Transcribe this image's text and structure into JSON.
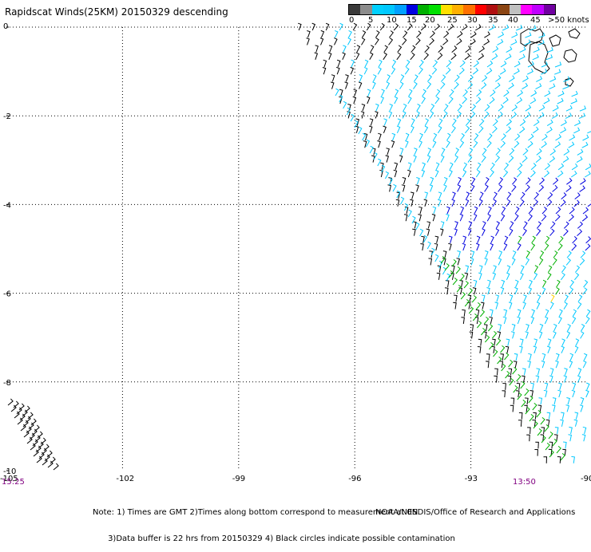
{
  "title": "Rapidscat Winds(25KM) 20150329 descending",
  "colorbar": {
    "colors": [
      "#3a3a3a",
      "#8c8c8c",
      "#00d0ff",
      "#00c8ff",
      "#00a0ff",
      "#0000e0",
      "#00b000",
      "#00e000",
      "#ffe000",
      "#ffb000",
      "#ff7000",
      "#ff0000",
      "#b01010",
      "#8b4513",
      "#c0c0c0",
      "#ff00ff",
      "#c000ff",
      "#7000a0"
    ],
    "labels": [
      "0",
      "5",
      "10",
      "15",
      "20",
      "25",
      "30",
      "35",
      "40",
      "45",
      ">50 knots"
    ]
  },
  "axes": {
    "x_ticks": [
      "-105",
      "-102",
      "-99",
      "-96",
      "-93",
      "-90"
    ],
    "y_ticks": [
      "0",
      "-2",
      "-4",
      "-6",
      "-8",
      "-10"
    ]
  },
  "times": {
    "left": "15:25",
    "right": "13:50"
  },
  "note_lines": [
    "Note: 1) Times are GMT 2)Times along bottom correspond to measurement at 0N",
    "      3)Data buffer is 22 hrs from 20150329 4) Black circles indicate possible contamination"
  ],
  "credit": "NOAA/NESDIS/Office of Research and Applications",
  "map": {
    "lon_range": [
      -105,
      -90
    ],
    "lat_range": [
      -10,
      0
    ],
    "grid": true,
    "legend_units": "knots",
    "wind_color_classes": {
      "0-5": "#000000",
      "5-15": "#00c8ff",
      "15-20": "#0000e0",
      "20-25": "#00b000",
      "25-30": "#ffd000",
      "30-40": "#ff6000"
    },
    "swath_description_regions": [
      "black",
      "cyan",
      "blue",
      "green",
      "yellow",
      "orange"
    ]
  }
}
